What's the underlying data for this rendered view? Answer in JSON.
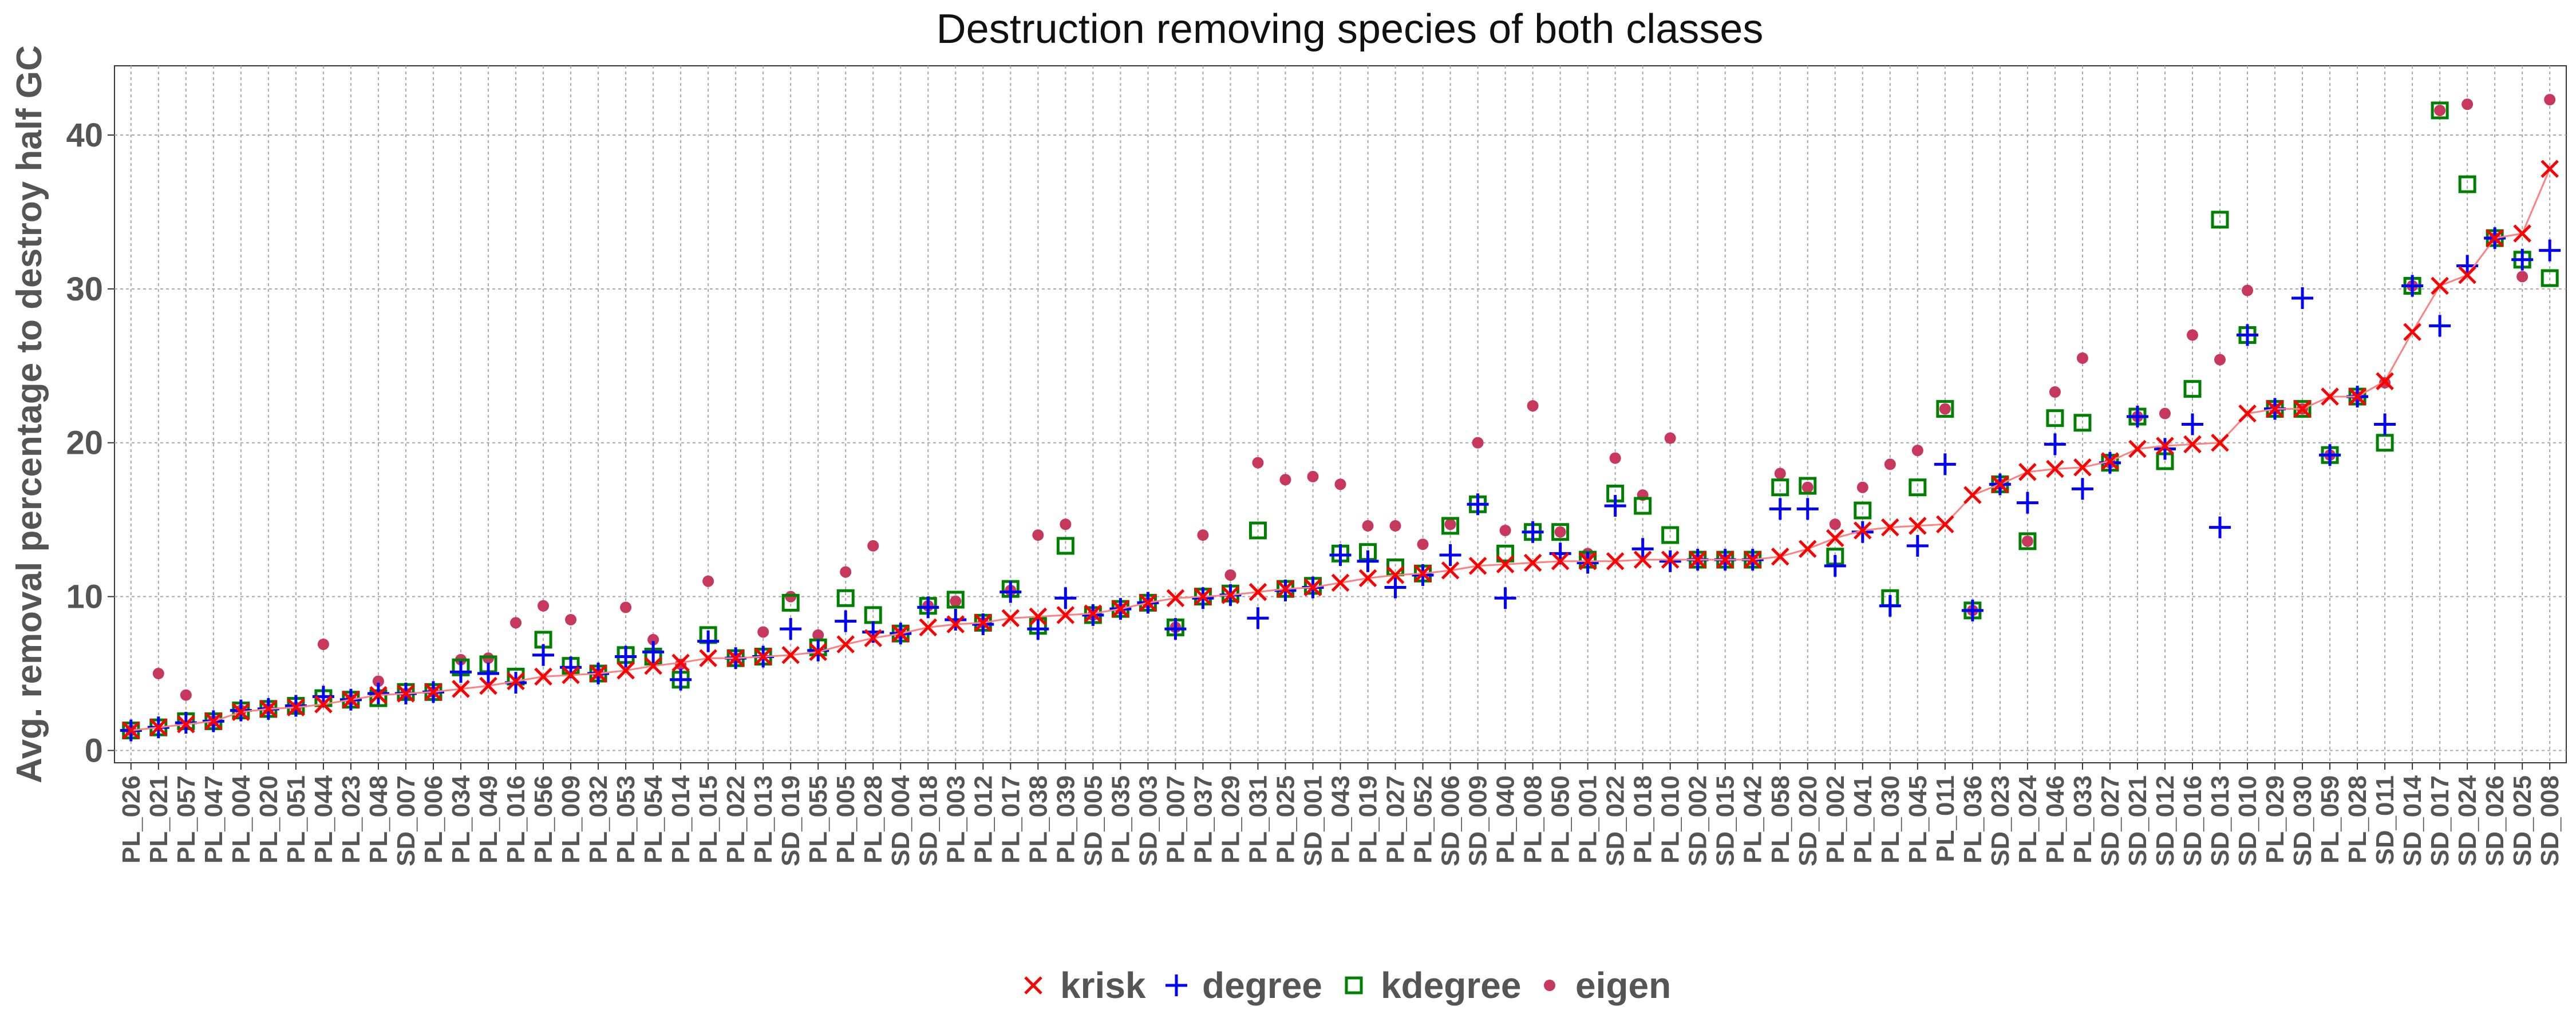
{
  "chart_data": {
    "type": "scatter",
    "title": "Destruction removing species of both classes",
    "xlabel": "",
    "ylabel": "Avg. removal percentage to destroy half GC",
    "ylim": [
      -0.8,
      44.5
    ],
    "yticks": [
      0,
      10,
      20,
      30,
      40
    ],
    "grid": true,
    "legend_position": "bottom",
    "categories": [
      "PL_026",
      "PL_021",
      "PL_057",
      "PL_047",
      "PL_004",
      "PL_020",
      "PL_051",
      "PL_044",
      "PL_023",
      "PL_048",
      "SD_007",
      "PL_006",
      "PL_034",
      "PL_049",
      "PL_016",
      "PL_056",
      "PL_009",
      "PL_032",
      "PL_053",
      "PL_054",
      "PL_014",
      "PL_015",
      "PL_022",
      "PL_013",
      "SD_019",
      "PL_055",
      "PL_005",
      "PL_028",
      "SD_004",
      "SD_018",
      "PL_003",
      "PL_012",
      "PL_017",
      "PL_038",
      "PL_039",
      "SD_005",
      "PL_035",
      "SD_003",
      "PL_007",
      "PL_037",
      "PL_029",
      "PL_031",
      "PL_025",
      "SD_001",
      "PL_043",
      "PL_019",
      "PL_027",
      "PL_052",
      "SD_006",
      "SD_009",
      "PL_040",
      "PL_008",
      "PL_050",
      "PL_001",
      "SD_022",
      "PL_018",
      "PL_010",
      "SD_002",
      "SD_015",
      "PL_042",
      "PL_058",
      "SD_020",
      "PL_002",
      "PL_041",
      "PL_030",
      "PL_045",
      "PL_011",
      "PL_036",
      "SD_023",
      "PL_024",
      "PL_046",
      "PL_033",
      "SD_027",
      "SD_021",
      "SD_012",
      "SD_016",
      "SD_013",
      "SD_010",
      "PL_029",
      "SD_030",
      "PL_059",
      "PL_028",
      "SD_011",
      "SD_014",
      "SD_017",
      "SD_024",
      "SD_026",
      "SD_025",
      "SD_008"
    ],
    "series": [
      {
        "name": "krisk",
        "marker": "x",
        "color": "#ff0000",
        "line": true,
        "values": [
          1.3,
          1.5,
          1.7,
          1.9,
          2.5,
          2.7,
          2.8,
          3.0,
          3.3,
          3.6,
          3.7,
          3.8,
          4.0,
          4.2,
          4.5,
          4.8,
          4.9,
          5.0,
          5.2,
          5.5,
          5.7,
          6.0,
          6.0,
          6.1,
          6.2,
          6.4,
          6.9,
          7.3,
          7.6,
          8.0,
          8.2,
          8.3,
          8.6,
          8.7,
          8.8,
          8.9,
          9.2,
          9.6,
          9.9,
          10.0,
          10.1,
          10.3,
          10.5,
          10.6,
          10.9,
          11.2,
          11.4,
          11.5,
          11.7,
          12.0,
          12.1,
          12.2,
          12.3,
          12.3,
          12.3,
          12.4,
          12.4,
          12.4,
          12.4,
          12.4,
          12.6,
          13.1,
          13.8,
          14.3,
          14.5,
          14.6,
          14.7,
          16.6,
          17.3,
          18.1,
          18.3,
          18.4,
          18.8,
          19.6,
          19.8,
          19.9,
          20.0,
          21.9,
          22.2,
          22.2,
          23.0,
          23.0,
          24.0,
          27.2,
          30.2,
          30.9,
          33.3,
          33.6,
          37.8
        ]
      },
      {
        "name": "degree",
        "marker": "plus",
        "color": "#0000ff",
        "line": false,
        "values": [
          1.3,
          1.5,
          1.8,
          1.9,
          2.6,
          2.7,
          2.9,
          3.5,
          3.3,
          3.7,
          3.7,
          3.8,
          5.1,
          5.0,
          4.4,
          6.2,
          5.4,
          5.0,
          6.1,
          6.4,
          4.6,
          7.1,
          6.0,
          6.1,
          7.9,
          6.5,
          8.4,
          7.7,
          7.6,
          9.3,
          8.5,
          8.2,
          10.3,
          7.9,
          9.9,
          8.8,
          9.2,
          9.6,
          7.9,
          9.9,
          10.1,
          8.6,
          10.4,
          10.6,
          12.7,
          12.3,
          10.6,
          11.4,
          12.7,
          16.0,
          9.9,
          14.2,
          12.8,
          12.2,
          15.9,
          13.1,
          12.3,
          12.4,
          12.4,
          12.4,
          15.7,
          15.7,
          12.0,
          14.2,
          9.4,
          13.3,
          18.6,
          9.1,
          17.3,
          16.1,
          19.9,
          17.0,
          18.7,
          21.7,
          19.6,
          21.2,
          14.5,
          27.0,
          22.2,
          29.4,
          19.2,
          23.0,
          21.2,
          30.2,
          27.6,
          31.5,
          33.3,
          31.9,
          32.5
        ]
      },
      {
        "name": "kdegree",
        "marker": "square",
        "color": "#008000",
        "line": false,
        "values": [
          1.3,
          1.5,
          1.9,
          1.9,
          2.6,
          2.7,
          2.9,
          3.4,
          3.3,
          3.4,
          3.8,
          3.8,
          5.4,
          5.6,
          4.8,
          7.2,
          5.5,
          5.0,
          6.2,
          6.1,
          4.6,
          7.5,
          6.0,
          6.1,
          9.6,
          6.7,
          9.9,
          8.8,
          7.6,
          9.4,
          9.8,
          8.3,
          10.5,
          8.1,
          13.3,
          8.8,
          9.2,
          9.6,
          8.0,
          10.0,
          10.2,
          14.3,
          10.5,
          10.7,
          12.8,
          12.9,
          11.9,
          11.5,
          14.6,
          16.0,
          12.8,
          14.2,
          14.2,
          12.4,
          16.7,
          15.9,
          14.0,
          12.4,
          12.4,
          12.4,
          17.1,
          17.2,
          12.6,
          15.6,
          9.9,
          17.1,
          22.2,
          9.1,
          17.3,
          13.6,
          21.6,
          21.3,
          18.7,
          21.7,
          18.8,
          23.5,
          34.5,
          27.0,
          22.2,
          22.2,
          19.2,
          23.0,
          20.0,
          30.2,
          41.6,
          36.8,
          33.3,
          31.9,
          30.7
        ]
      },
      {
        "name": "eigen",
        "marker": "dot",
        "color": "#c8375e",
        "line": false,
        "values": [
          1.3,
          5.0,
          3.6,
          1.9,
          2.6,
          2.7,
          2.8,
          6.9,
          3.3,
          4.5,
          3.7,
          3.8,
          5.9,
          6.0,
          8.3,
          9.4,
          8.5,
          5.0,
          9.3,
          7.2,
          5.6,
          11.0,
          6.0,
          7.7,
          10.0,
          7.5,
          11.6,
          13.3,
          7.6,
          9.4,
          9.7,
          8.3,
          10.4,
          14.0,
          14.7,
          8.8,
          9.2,
          9.6,
          8.0,
          14.0,
          11.4,
          18.7,
          17.6,
          17.8,
          17.3,
          14.6,
          14.6,
          13.4,
          14.7,
          20.0,
          14.3,
          22.4,
          14.2,
          12.8,
          19.0,
          16.6,
          20.3,
          12.4,
          12.4,
          12.4,
          18.0,
          17.1,
          14.7,
          17.1,
          18.6,
          19.5,
          22.2,
          9.1,
          17.3,
          13.6,
          23.3,
          25.5,
          18.7,
          21.7,
          21.9,
          27.0,
          25.4,
          29.9,
          22.2,
          22.2,
          19.2,
          23.0,
          23.9,
          30.2,
          41.6,
          42.0,
          33.3,
          30.8,
          42.3
        ]
      }
    ]
  }
}
